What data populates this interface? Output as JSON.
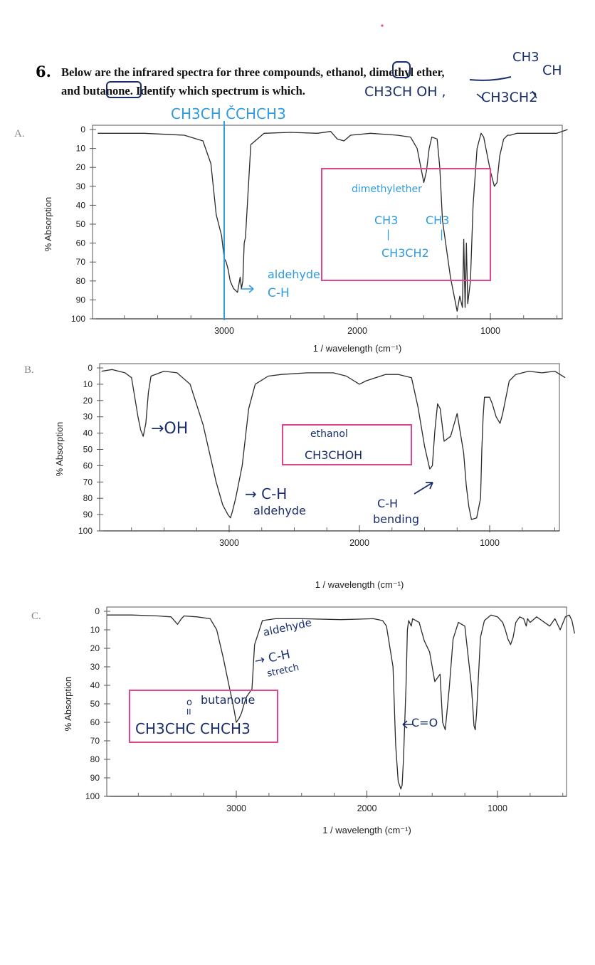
{
  "question": {
    "number": "6.",
    "line1": "Below are the infrared spectra for three compounds, ethanol, dimethyl ether,",
    "line2": "and butanone. Identify which spectrum is which."
  },
  "header_notes": {
    "ch3": "CH3",
    "ch_right": "CH",
    "ethanol_formula": "CH3CH OH ,",
    "ether_formula": "CH3CH2"
  },
  "accent_colors": {
    "ink_navy": "#1a2e6e",
    "ink_cyan": "#2f9be0",
    "box_pink": "#e0468f",
    "spectrum": "#2b2b2b"
  },
  "chart_data": [
    {
      "type": "line",
      "panel": "A.",
      "xlabel": "1 / wavelength  (cm⁻¹)",
      "ylabel": "% Absorption",
      "x_ticks": [
        "3000",
        "2000",
        "1000"
      ],
      "y_ticks": [
        "0",
        "10",
        "20",
        "30",
        "40",
        "50",
        "60",
        "70",
        "80",
        "90",
        "100"
      ],
      "xlim": [
        4000,
        400
      ],
      "ylim": [
        0,
        100
      ],
      "series": [
        {
          "name": "A",
          "x": [
            3950,
            3600,
            3300,
            3160,
            3100,
            3060,
            3020,
            3000,
            2985,
            2970,
            2955,
            2930,
            2900,
            2880,
            2870,
            2860,
            2850,
            2840,
            2800,
            2700,
            2500,
            2300,
            2200,
            2150,
            2100,
            2050,
            1900,
            1700,
            1600,
            1550,
            1500,
            1480,
            1460,
            1440,
            1400,
            1380,
            1360,
            1300,
            1250,
            1230,
            1210,
            1200,
            1190,
            1180,
            1170,
            1150,
            1130,
            1100,
            1070,
            1050,
            1000,
            970,
            950,
            930,
            900,
            870,
            850,
            800,
            700,
            600,
            500,
            420
          ],
          "values": [
            2,
            2,
            3,
            6,
            18,
            45,
            56,
            68,
            70,
            74,
            80,
            84,
            86,
            78,
            84,
            80,
            60,
            57,
            8,
            2,
            1.5,
            2,
            1,
            5,
            6,
            3,
            2,
            3,
            4,
            10,
            28,
            22,
            10,
            4,
            5,
            20,
            48,
            78,
            96,
            88,
            94,
            58,
            94,
            60,
            92,
            80,
            40,
            10,
            2,
            4,
            22,
            30,
            28,
            14,
            5,
            3,
            3,
            2,
            2,
            2,
            2,
            0
          ]
        }
      ],
      "annotations": {
        "structure": "CH3CH ČCHCH3",
        "aldehyde": "aldehyde",
        "ch": "C-H",
        "box_title": "dimethylether",
        "box_ch3_left": "CH3",
        "box_ch3_right": "CH3",
        "box_bond_left": "|",
        "box_bond_right": "|",
        "box_bottom": "CH3CH2"
      }
    },
    {
      "type": "line",
      "panel": "B.",
      "xlabel": "1 / wavelength  (cm⁻¹)",
      "ylabel": "% Absorption",
      "x_ticks": [
        "3000",
        "2000",
        "1000"
      ],
      "y_ticks": [
        "0",
        "10",
        "20",
        "30",
        "40",
        "50",
        "60",
        "70",
        "80",
        "90",
        "100"
      ],
      "xlim": [
        4000,
        400
      ],
      "ylim": [
        0,
        100
      ],
      "series": [
        {
          "name": "B",
          "x": [
            3980,
            3900,
            3800,
            3750,
            3700,
            3680,
            3660,
            3640,
            3620,
            3600,
            3500,
            3400,
            3300,
            3200,
            3100,
            3050,
            3010,
            2990,
            2975,
            2950,
            2900,
            2850,
            2800,
            2700,
            2600,
            2400,
            2200,
            2100,
            2000,
            1950,
            1800,
            1700,
            1600,
            1550,
            1500,
            1460,
            1440,
            1420,
            1400,
            1380,
            1350,
            1300,
            1250,
            1200,
            1180,
            1160,
            1140,
            1100,
            1070,
            1060,
            1050,
            1040,
            1000,
            980,
            950,
            920,
            900,
            880,
            850,
            800,
            700,
            600,
            500,
            420
          ],
          "values": [
            2,
            1,
            3,
            6,
            30,
            38,
            42,
            34,
            15,
            5,
            2,
            3,
            10,
            35,
            70,
            84,
            90,
            92,
            88,
            80,
            60,
            25,
            10,
            5,
            4,
            3,
            3,
            5,
            10,
            8,
            4,
            4,
            6,
            24,
            48,
            62,
            60,
            38,
            22,
            25,
            45,
            42,
            28,
            52,
            72,
            85,
            93,
            92,
            80,
            50,
            30,
            18,
            18,
            22,
            30,
            34,
            28,
            20,
            8,
            4,
            2,
            3,
            2,
            6
          ]
        }
      ],
      "annotations": {
        "oh": "→OH",
        "box_title": "ethanol",
        "box_formula": "CH3CHOH",
        "ch_label": "→ C-H",
        "aldehyde": "aldehyde",
        "bend_ch": "C-H",
        "bend_word": "bending"
      }
    },
    {
      "type": "line",
      "panel": "C.",
      "xlabel": "1 / wavelength  (cm⁻¹)",
      "ylabel": "% Absorption",
      "x_ticks": [
        "3000",
        "2000",
        "1000"
      ],
      "y_ticks": [
        "0",
        "10",
        "20",
        "30",
        "40",
        "50",
        "60",
        "70",
        "80",
        "90",
        "100"
      ],
      "xlim": [
        4000,
        400
      ],
      "ylim": [
        0,
        100
      ],
      "series": [
        {
          "name": "C",
          "x": [
            3990,
            3800,
            3600,
            3500,
            3450,
            3420,
            3400,
            3300,
            3200,
            3150,
            3100,
            3050,
            3020,
            3000,
            2980,
            2960,
            2940,
            2920,
            2900,
            2880,
            2860,
            2800,
            2700,
            2500,
            2200,
            1950,
            1880,
            1850,
            1800,
            1780,
            1760,
            1740,
            1730,
            1720,
            1700,
            1690,
            1680,
            1660,
            1650,
            1600,
            1560,
            1520,
            1480,
            1460,
            1440,
            1420,
            1400,
            1370,
            1340,
            1300,
            1250,
            1200,
            1180,
            1170,
            1160,
            1130,
            1100,
            1050,
            1000,
            960,
            940,
            920,
            900,
            880,
            860,
            830,
            800,
            780,
            770,
            750,
            700,
            660,
            600,
            560,
            520,
            480,
            450,
            430,
            410
          ],
          "values": [
            2,
            2,
            2.5,
            3,
            7,
            4,
            2.5,
            3,
            4,
            10,
            25,
            42,
            52,
            60,
            58,
            55,
            50,
            46,
            44,
            42,
            18,
            5,
            4,
            4,
            4.5,
            4,
            5,
            8,
            30,
            72,
            92,
            96,
            94,
            80,
            40,
            10,
            5,
            8,
            4,
            6,
            16,
            22,
            38,
            36,
            34,
            60,
            64,
            42,
            15,
            6,
            8,
            40,
            62,
            64,
            55,
            14,
            5,
            2,
            3,
            6,
            10,
            15,
            18,
            14,
            6,
            3,
            4,
            8,
            4,
            6,
            3,
            5,
            8,
            4,
            10,
            3,
            2,
            5,
            12
          ]
        }
      ],
      "annotations": {
        "aldehyde": "aldehyde",
        "ch": "→ C-H",
        "stretch": "stretch",
        "box_o": "o",
        "box_name": "butanone",
        "box_double": "II",
        "box_formula": "CH3CHC CHCH3",
        "co": "C=O"
      }
    }
  ]
}
